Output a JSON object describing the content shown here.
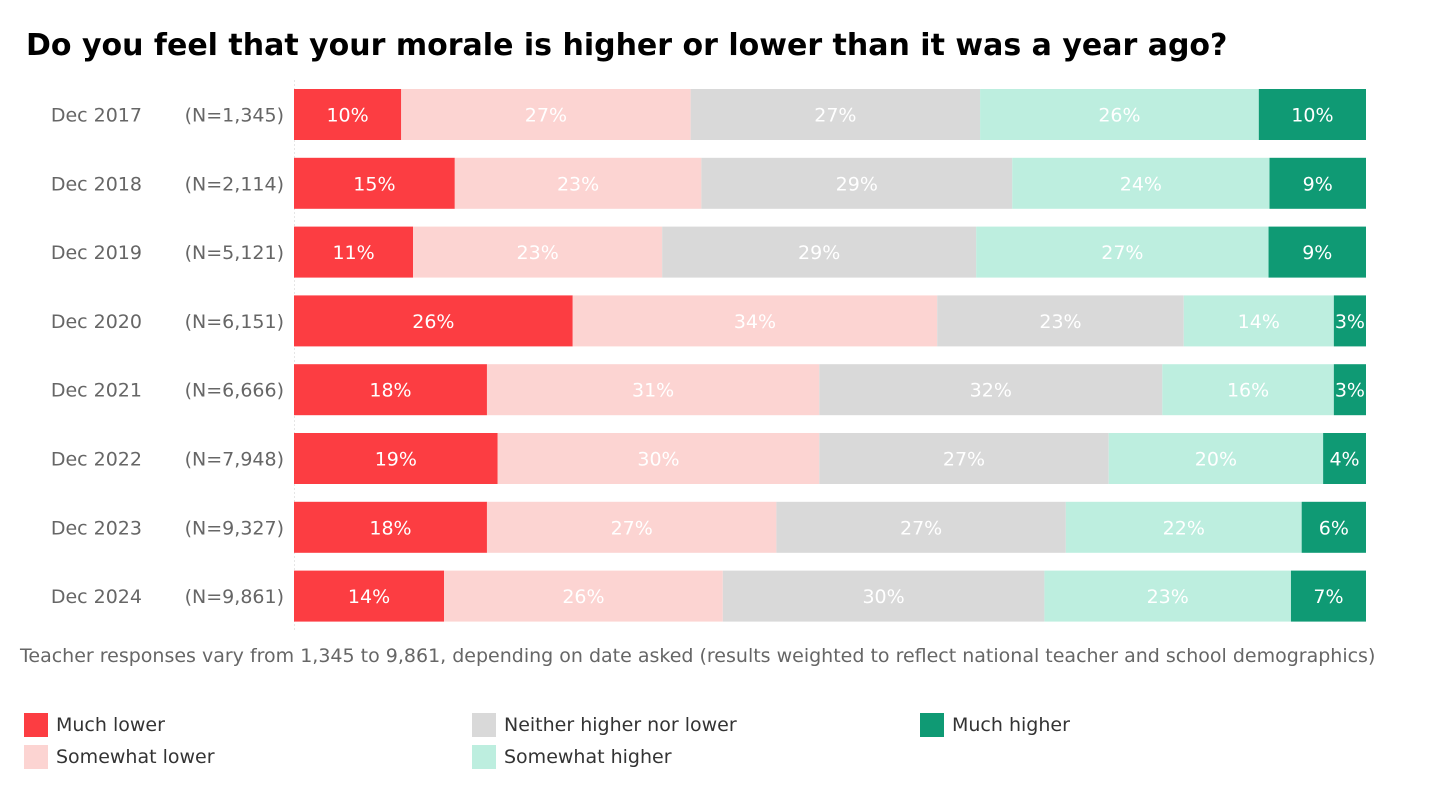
{
  "chart_data": {
    "type": "bar",
    "orientation": "horizontal",
    "stacked": true,
    "title": "Do you feel that your morale is higher or lower than it was a year ago?",
    "categories": [
      "Dec 2017",
      "Dec 2018",
      "Dec 2019",
      "Dec 2020",
      "Dec 2021",
      "Dec 2022",
      "Dec 2023",
      "Dec 2024"
    ],
    "sample_sizes": [
      "(N=1,345)",
      "(N=2,114)",
      "(N=5,121)",
      "(N=6,151)",
      "(N=6,666)",
      "(N=7,948)",
      "(N=9,327)",
      "(N=9,861)"
    ],
    "series": [
      {
        "name": "Much lower",
        "color": "#fc3d42",
        "values": [
          10,
          15,
          11,
          26,
          18,
          19,
          18,
          14
        ],
        "labels": [
          "10%",
          "15%",
          "11%",
          "26%",
          "18%",
          "19%",
          "18%",
          "14%"
        ]
      },
      {
        "name": "Somewhat lower",
        "color": "#fcd4d2",
        "values": [
          27,
          23,
          23,
          34,
          31,
          30,
          27,
          26
        ],
        "labels": [
          "27%",
          "23%",
          "23%",
          "34%",
          "31%",
          "30%",
          "27%",
          "26%"
        ]
      },
      {
        "name": "Neither higher nor lower",
        "color": "#d9d9d9",
        "values": [
          27,
          29,
          29,
          23,
          32,
          27,
          27,
          30
        ],
        "labels": [
          "27%",
          "29%",
          "29%",
          "23%",
          "32%",
          "27%",
          "27%",
          "30%"
        ]
      },
      {
        "name": "Somewhat higher",
        "color": "#bdeedf",
        "values": [
          26,
          24,
          27,
          14,
          16,
          20,
          22,
          23
        ],
        "labels": [
          "26%",
          "24%",
          "27%",
          "14%",
          "16%",
          "20%",
          "22%",
          "23%"
        ]
      },
      {
        "name": "Much higher",
        "color": "#0f9a74",
        "values": [
          10,
          9,
          9,
          3,
          3,
          4,
          6,
          7
        ],
        "labels": [
          "10%",
          "9%",
          "9%",
          "3%",
          "3%",
          "4%",
          "6%",
          "7%"
        ]
      }
    ],
    "xlim": [
      0,
      100
    ],
    "grid": false,
    "legend_position": "bottom",
    "footnote": "Teacher responses vary from 1,345 to 9,861, depending on date asked (results weighted to reflect national teacher and school demographics)"
  }
}
